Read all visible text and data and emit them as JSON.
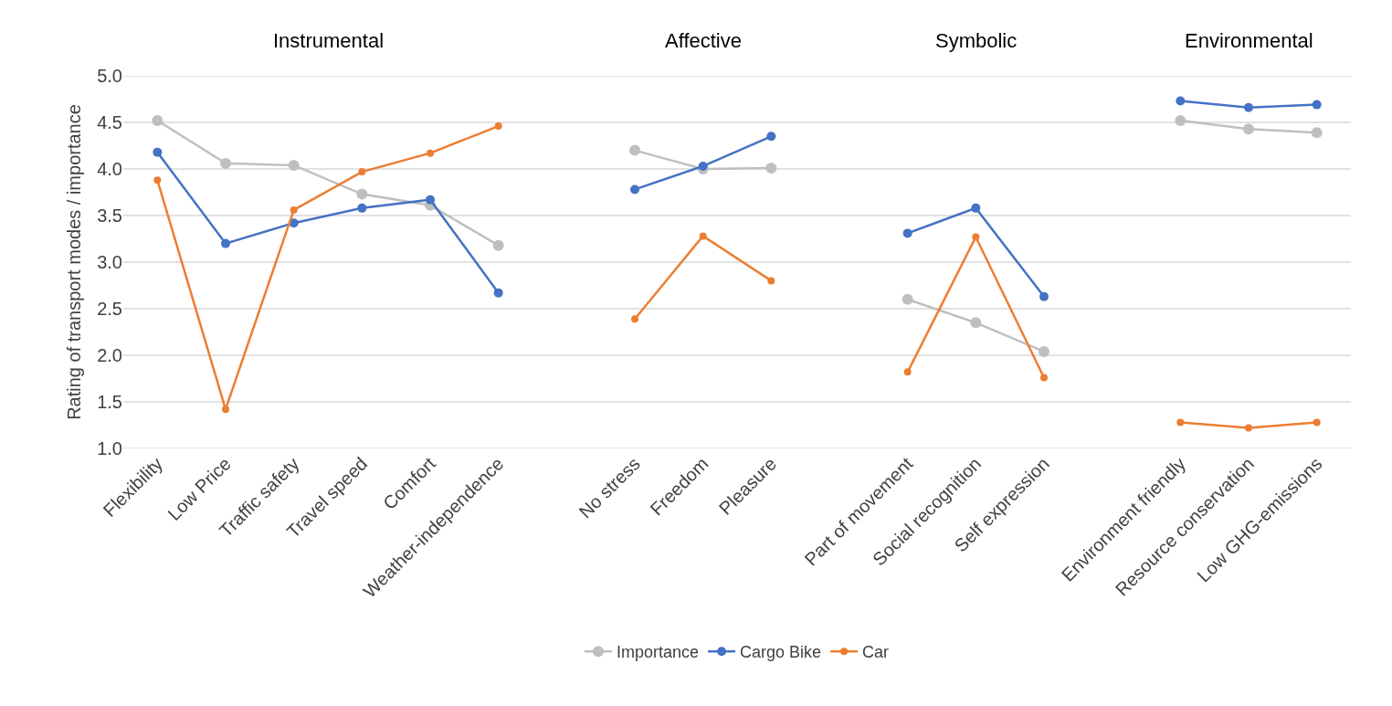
{
  "chart_data": {
    "type": "line",
    "ylabel": "Rating of transport modes / importance",
    "categories": [
      "Flexibility",
      "Low Price",
      "Traffic safety",
      "Travel speed",
      "Comfort",
      "Weather-independence",
      null,
      "No stress",
      "Freedom",
      "Pleasure",
      null,
      "Part of movement",
      "Social recognition",
      "Self expression",
      null,
      "Environment friendly",
      "Resource conservation",
      "Low GHG-emissions"
    ],
    "series": [
      {
        "name": "Importance",
        "color": "#bfbfbf",
        "values": [
          4.52,
          4.06,
          4.04,
          3.73,
          3.61,
          3.18,
          null,
          4.2,
          4.0,
          4.01,
          null,
          2.6,
          2.35,
          2.04,
          null,
          4.52,
          4.43,
          4.39
        ]
      },
      {
        "name": "Cargo Bike",
        "color": "#4472c4",
        "values": [
          4.18,
          3.2,
          3.42,
          3.58,
          3.67,
          2.67,
          null,
          3.78,
          4.03,
          4.35,
          null,
          3.31,
          3.58,
          2.63,
          null,
          4.73,
          4.66,
          4.69
        ]
      },
      {
        "name": "Car",
        "color": "#ed7d31",
        "values": [
          3.88,
          1.42,
          3.56,
          3.97,
          4.17,
          4.46,
          null,
          2.39,
          3.28,
          2.8,
          null,
          1.82,
          3.27,
          1.76,
          null,
          1.28,
          1.22,
          1.28
        ]
      }
    ],
    "annotations": [
      "Instrumental",
      "Affective",
      "Symbolic",
      "Environmental"
    ],
    "ylim": [
      1,
      5
    ],
    "yticks": [
      {
        "value": 1,
        "label": "1.0"
      },
      {
        "value": 1.5,
        "label": "1.5"
      },
      {
        "value": 2,
        "label": "2.0"
      },
      {
        "value": 2.5,
        "label": "2.5"
      },
      {
        "value": 3,
        "label": "3.0"
      },
      {
        "value": 3.5,
        "label": "3.5"
      },
      {
        "value": 4,
        "label": "4.0"
      },
      {
        "value": 4.5,
        "label": "4.5"
      },
      {
        "value": 5,
        "label": "5.0"
      }
    ],
    "grid": "y",
    "legend": "bottom",
    "marker": "circle",
    "line_style": "solid"
  }
}
